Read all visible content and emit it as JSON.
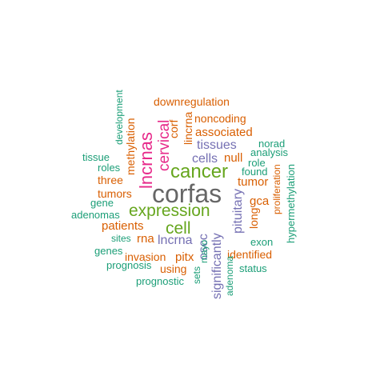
{
  "palette": {
    "green": "#1b9e77",
    "orange": "#d95f02",
    "purple": "#7570b3",
    "magenta": "#e7298a",
    "lime": "#66a61e",
    "gray": "#666666"
  },
  "words": [
    {
      "text": "corfas",
      "color": "gray"
    },
    {
      "text": "cancer",
      "color": "lime"
    },
    {
      "text": "expression",
      "color": "lime"
    },
    {
      "text": "cell",
      "color": "lime"
    },
    {
      "text": "lncrnas",
      "color": "magenta"
    },
    {
      "text": "cervical",
      "color": "magenta"
    },
    {
      "text": "cells",
      "color": "purple"
    },
    {
      "text": "tissues",
      "color": "purple"
    },
    {
      "text": "lncrna",
      "color": "purple"
    },
    {
      "text": "pituitary",
      "color": "purple"
    },
    {
      "text": "significantly",
      "color": "purple"
    },
    {
      "text": "oscc",
      "color": "purple"
    },
    {
      "text": "downregulation",
      "color": "orange"
    },
    {
      "text": "noncoding",
      "color": "orange"
    },
    {
      "text": "associated",
      "color": "orange"
    },
    {
      "text": "lincrna",
      "color": "orange"
    },
    {
      "text": "corf",
      "color": "orange"
    },
    {
      "text": "null",
      "color": "orange"
    },
    {
      "text": "tumor",
      "color": "orange"
    },
    {
      "text": "tumors",
      "color": "orange"
    },
    {
      "text": "three",
      "color": "orange"
    },
    {
      "text": "methylation",
      "color": "orange"
    },
    {
      "text": "patients",
      "color": "orange"
    },
    {
      "text": "rna",
      "color": "orange"
    },
    {
      "text": "gca",
      "color": "orange"
    },
    {
      "text": "long",
      "color": "orange"
    },
    {
      "text": "invasion",
      "color": "orange"
    },
    {
      "text": "pitx",
      "color": "orange"
    },
    {
      "text": "using",
      "color": "orange"
    },
    {
      "text": "identified",
      "color": "orange"
    },
    {
      "text": "proliferation",
      "color": "orange"
    },
    {
      "text": "development",
      "color": "green"
    },
    {
      "text": "tissue",
      "color": "green"
    },
    {
      "text": "roles",
      "color": "green"
    },
    {
      "text": "gene",
      "color": "green"
    },
    {
      "text": "adenomas",
      "color": "green"
    },
    {
      "text": "sites",
      "color": "green"
    },
    {
      "text": "genes",
      "color": "green"
    },
    {
      "text": "prognosis",
      "color": "green"
    },
    {
      "text": "prognostic",
      "color": "green"
    },
    {
      "text": "norad",
      "color": "green"
    },
    {
      "text": "analysis",
      "color": "green"
    },
    {
      "text": "role",
      "color": "green"
    },
    {
      "text": "found",
      "color": "green"
    },
    {
      "text": "exon",
      "color": "green"
    },
    {
      "text": "status",
      "color": "green"
    },
    {
      "text": "hypermethylation",
      "color": "green"
    },
    {
      "text": "mayo",
      "color": "green"
    },
    {
      "text": "sets",
      "color": "green"
    },
    {
      "text": "adenoma",
      "color": "green"
    }
  ]
}
